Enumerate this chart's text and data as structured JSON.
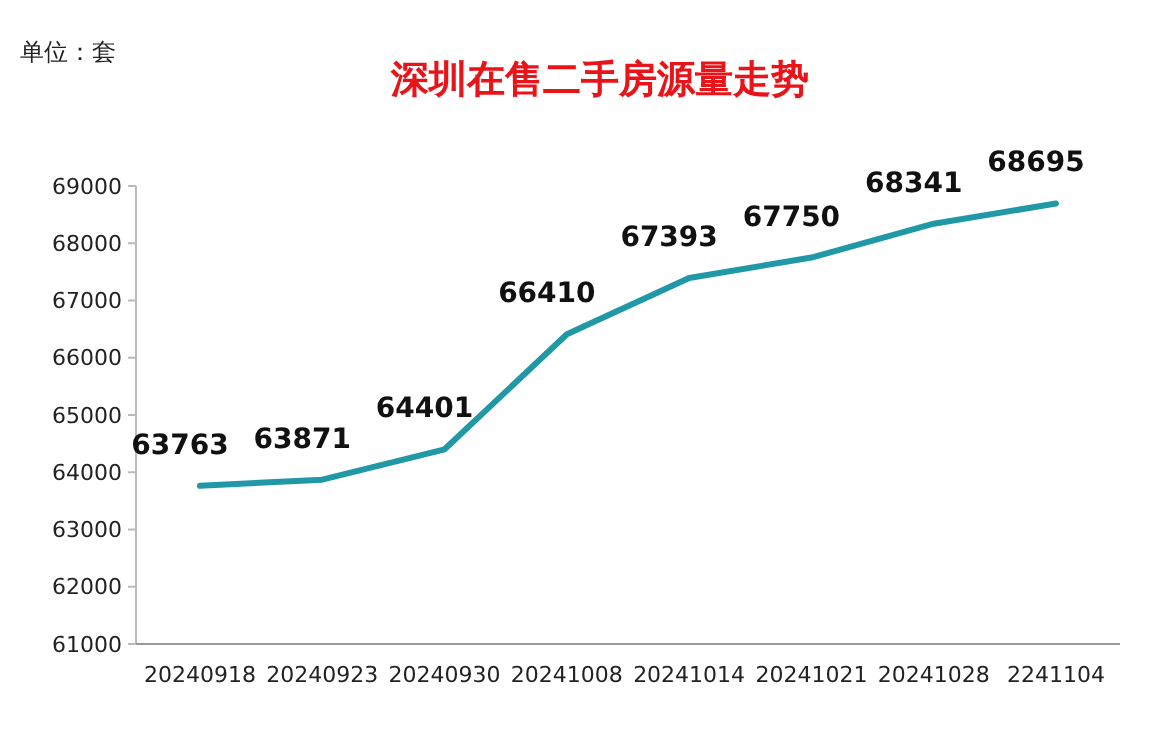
{
  "chart_data": {
    "type": "line",
    "title": "深圳在售二手房源量走势",
    "annotations": [
      "单位：套"
    ],
    "categories": [
      "20240918",
      "20240923",
      "20240930",
      "20241008",
      "20241014",
      "20241021",
      "20241028",
      "2241104"
    ],
    "series": [
      {
        "color": "#2098a6",
        "values": [
          63763,
          63871,
          64401,
          66410,
          67393,
          67750,
          68341,
          68695
        ]
      }
    ],
    "ylim": [
      61000,
      69000
    ],
    "yticks": [
      61000,
      62000,
      63000,
      64000,
      65000,
      66000,
      67000,
      68000,
      69000
    ],
    "grid": false,
    "data_labels": true,
    "marker": "none",
    "line_style": "solid"
  }
}
